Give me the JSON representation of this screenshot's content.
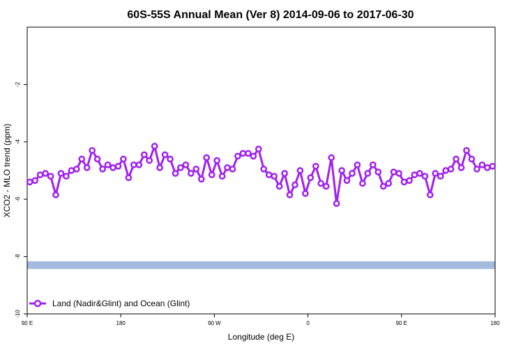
{
  "chart_data": {
    "type": "line",
    "title": "60S-55S Annual Mean (Ver 8)   2014-09-06 to 2017-06-30",
    "xlabel": "Longitude (deg E)",
    "ylabel": "XCO2 - MLO trend (ppm)",
    "xlim": [
      90,
      540
    ],
    "ylim": [
      -10,
      0
    ],
    "xticks": [
      {
        "value": 90,
        "label": "90 E"
      },
      {
        "value": 180,
        "label": "180"
      },
      {
        "value": 270,
        "label": "90 W"
      },
      {
        "value": 360,
        "label": "0"
      },
      {
        "value": 450,
        "label": "90 E"
      },
      {
        "value": 540,
        "label": "180"
      }
    ],
    "yticks": [
      {
        "value": -2,
        "label": "-2"
      },
      {
        "value": -4,
        "label": "-4"
      },
      {
        "value": -6,
        "label": "-6"
      },
      {
        "value": -8,
        "label": "-8"
      },
      {
        "value": -10,
        "label": "-10"
      }
    ],
    "series": [
      {
        "name": "Land (Nadir&Glint) and Ocean (Glint)",
        "color": "#a020f0",
        "x": [
          92.5,
          97.5,
          102.5,
          107.5,
          112.5,
          117.5,
          122.5,
          127.5,
          132.5,
          137.5,
          142.5,
          147.5,
          152.5,
          157.5,
          162.5,
          167.5,
          172.5,
          177.5,
          182.5,
          187.5,
          192.5,
          197.5,
          202.5,
          207.5,
          212.5,
          217.5,
          222.5,
          227.5,
          232.5,
          237.5,
          242.5,
          247.5,
          252.5,
          257.5,
          262.5,
          267.5,
          272.5,
          277.5,
          282.5,
          287.5,
          292.5,
          297.5,
          302.5,
          307.5,
          312.5,
          317.5,
          322.5,
          327.5,
          332.5,
          337.5,
          342.5,
          347.5,
          352.5,
          357.5,
          362.5,
          367.5,
          372.5,
          377.5,
          382.5,
          387.5,
          392.5,
          397.5,
          402.5,
          407.5,
          412.5,
          417.5,
          422.5,
          427.5,
          432.5,
          437.5,
          442.5,
          447.5,
          452.5,
          457.5,
          462.5,
          467.5,
          472.5,
          477.5,
          482.5,
          487.5,
          492.5,
          497.5,
          502.5,
          507.5,
          512.5,
          517.5,
          522.5,
          527.5,
          532.5,
          537.5
        ],
        "values": [
          -5.4,
          -5.35,
          -5.15,
          -5.1,
          -5.2,
          -5.85,
          -5.1,
          -5.2,
          -5.0,
          -4.95,
          -4.6,
          -4.9,
          -4.3,
          -4.6,
          -4.95,
          -4.8,
          -4.9,
          -4.85,
          -4.6,
          -5.25,
          -4.8,
          -4.8,
          -4.45,
          -4.65,
          -4.15,
          -4.9,
          -4.45,
          -4.6,
          -5.1,
          -4.9,
          -4.8,
          -5.1,
          -4.95,
          -5.3,
          -4.55,
          -5.15,
          -4.65,
          -5.2,
          -4.9,
          -4.95,
          -4.5,
          -4.4,
          -4.4,
          -4.5,
          -4.25,
          -4.95,
          -5.15,
          -5.2,
          -5.55,
          -5.1,
          -5.85,
          -5.5,
          -5.0,
          -5.8,
          -5.25,
          -4.85,
          -5.45,
          -5.55,
          -4.55,
          -6.15,
          -5.0,
          -5.35,
          -5.1,
          -4.8,
          -5.45,
          -5.1,
          -4.8,
          -5.05,
          -5.55,
          -5.45,
          -5.05,
          -5.1,
          -5.4,
          -5.35,
          -5.15,
          -5.1,
          -5.2,
          -5.85,
          -5.1,
          -5.2,
          -5.0,
          -4.95,
          -4.6,
          -4.9,
          -4.3,
          -4.6,
          -4.95,
          -4.8,
          -4.9,
          -4.85
        ]
      }
    ],
    "band": {
      "y": -8.3,
      "color": "#a4bade"
    },
    "legend": {
      "placement": "bottom-left"
    }
  }
}
